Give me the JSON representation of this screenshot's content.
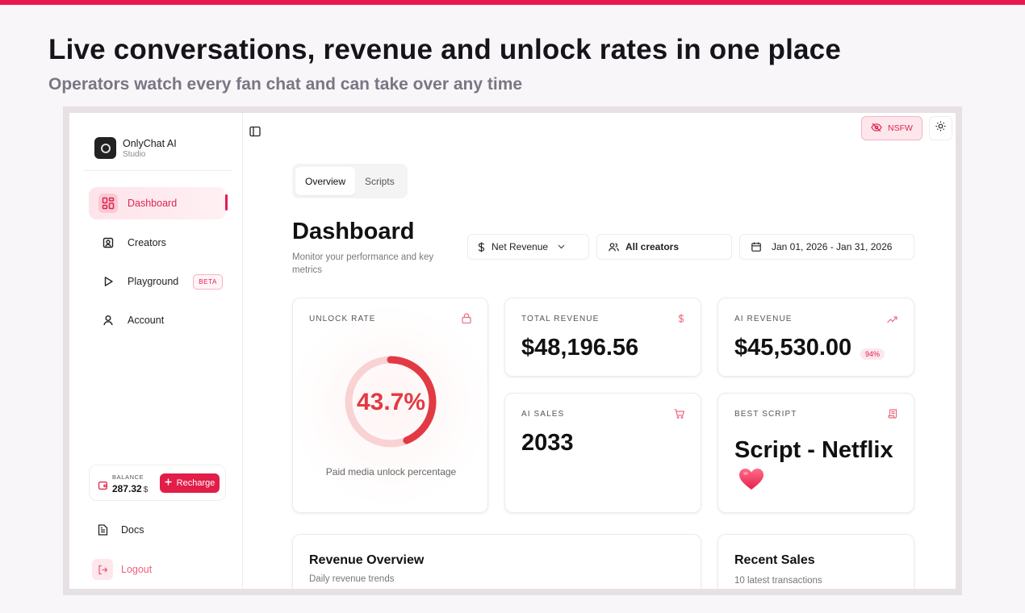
{
  "hero": {
    "title": "Live conversations, revenue and unlock rates in one place",
    "subtitle": "Operators watch every fan chat and can take over any time"
  },
  "brand": {
    "name": "OnlyChat AI",
    "sub": "Studio"
  },
  "sidebar": {
    "items": [
      {
        "label": "Dashboard",
        "icon": "layout-grid-icon",
        "active": true
      },
      {
        "label": "Creators",
        "icon": "contact-icon"
      },
      {
        "label": "Playground",
        "icon": "play-icon",
        "badge": "BETA"
      },
      {
        "label": "Account",
        "icon": "user-icon"
      }
    ],
    "balance": {
      "label": "BALANCE",
      "value": "287.32",
      "currency": "$",
      "button": "Recharge"
    },
    "docs": "Docs",
    "logout": "Logout"
  },
  "topbar": {
    "nsfw": "NSFW"
  },
  "tabs": [
    {
      "label": "Overview",
      "active": true
    },
    {
      "label": "Scripts"
    }
  ],
  "page": {
    "title": "Dashboard",
    "subtitle": "Monitor your performance and key metrics"
  },
  "filters": {
    "metric": "Net Revenue",
    "creators": "All creators",
    "date_range": "Jan 01, 2026 - Jan 31, 2026"
  },
  "cards": {
    "unlock": {
      "label": "UNLOCK RATE",
      "value": "43.7%",
      "percent": 43.7,
      "caption": "Paid media unlock percentage"
    },
    "total_revenue": {
      "label": "TOTAL REVENUE",
      "value": "$48,196.56"
    },
    "ai_revenue": {
      "label": "AI REVENUE",
      "value": "$45,530.00",
      "badge": "94%"
    },
    "ai_sales": {
      "label": "AI SALES",
      "value": "2033"
    },
    "best_script": {
      "label": "BEST SCRIPT",
      "value": "Script - Netflix"
    }
  },
  "sections": {
    "revenue": {
      "title": "Revenue Overview",
      "subtitle": "Daily revenue trends"
    },
    "recent": {
      "title": "Recent Sales",
      "subtitle": "10 latest transactions"
    }
  },
  "colors": {
    "accent": "#e8194f",
    "donut": "#e23a43",
    "donut_track": "#f9d2d4"
  }
}
